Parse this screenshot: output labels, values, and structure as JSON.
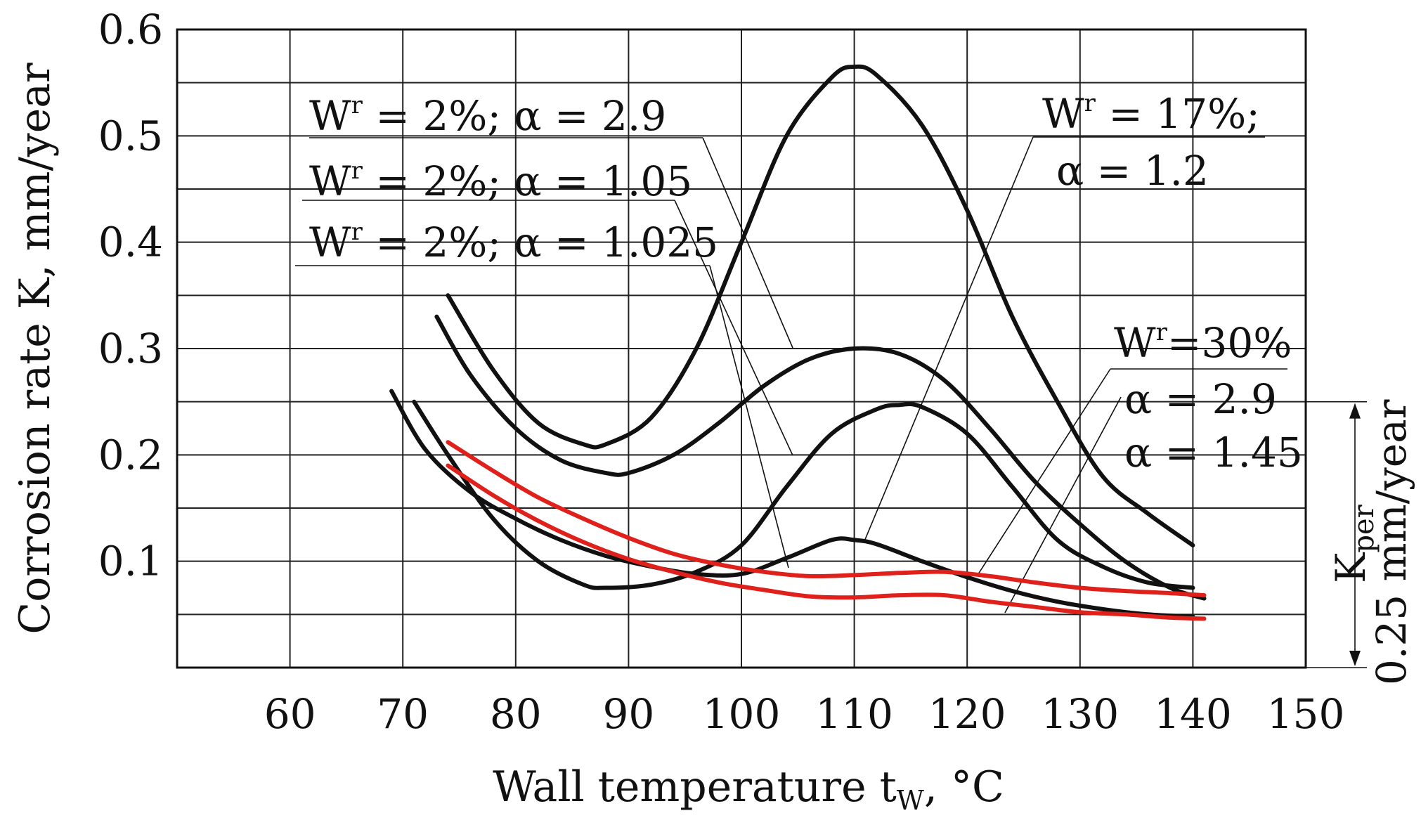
{
  "chart_data": {
    "type": "line",
    "title": "",
    "xlabel": "Wall temperature t",
    "xlabel_sub": "W",
    "xlabel_unit": ", °C",
    "ylabel": "Corrosion rate K, mm/year",
    "xlim": [
      50,
      150
    ],
    "ylim": [
      0,
      0.6
    ],
    "x_ticks": [
      "60",
      "70",
      "80",
      "90",
      "100",
      "110",
      "120",
      "130",
      "140",
      "150"
    ],
    "y_ticks": [
      "0.1",
      "0.2",
      "0.3",
      "0.4",
      "0.5",
      "0.6"
    ],
    "grid": true,
    "colors": {
      "black": "#111111",
      "red": "#e0201b"
    },
    "series": [
      {
        "name": "Wr = 2%; α = 2.9",
        "color": "black",
        "x": [
          74,
          78,
          82,
          86,
          88,
          92,
          96,
          100,
          104,
          108,
          110,
          112,
          116,
          120,
          124,
          128,
          132,
          136,
          140
        ],
        "y": [
          0.35,
          0.28,
          0.23,
          0.21,
          0.21,
          0.235,
          0.3,
          0.4,
          0.5,
          0.555,
          0.565,
          0.557,
          0.51,
          0.43,
          0.33,
          0.25,
          0.18,
          0.145,
          0.115
        ]
      },
      {
        "name": "Wr = 2%; α = 1.05",
        "color": "black",
        "x": [
          73,
          76,
          80,
          84,
          88,
          90,
          94,
          98,
          102,
          106,
          110,
          114,
          118,
          122,
          126,
          130,
          134,
          138,
          141
        ],
        "y": [
          0.33,
          0.275,
          0.225,
          0.195,
          0.183,
          0.183,
          0.2,
          0.23,
          0.265,
          0.29,
          0.3,
          0.295,
          0.27,
          0.225,
          0.175,
          0.135,
          0.1,
          0.075,
          0.065
        ]
      },
      {
        "name": "Wr = 2%; α = 1.025",
        "color": "black",
        "x": [
          71,
          74,
          78,
          82,
          86,
          88,
          92,
          96,
          100,
          104,
          108,
          112,
          114,
          116,
          120,
          124,
          128,
          132,
          136,
          140
        ],
        "y": [
          0.25,
          0.2,
          0.14,
          0.1,
          0.078,
          0.075,
          0.078,
          0.09,
          0.115,
          0.17,
          0.22,
          0.243,
          0.247,
          0.245,
          0.22,
          0.17,
          0.12,
          0.095,
          0.08,
          0.075
        ]
      },
      {
        "name": "Wr = 17%; α = 1.2",
        "color": "black",
        "x": [
          69,
          72,
          76,
          80,
          84,
          88,
          92,
          96,
          100,
          104,
          108,
          110,
          112,
          116,
          120,
          124,
          128,
          132,
          136,
          140
        ],
        "y": [
          0.26,
          0.205,
          0.165,
          0.14,
          0.12,
          0.105,
          0.095,
          0.088,
          0.088,
          0.103,
          0.12,
          0.12,
          0.116,
          0.1,
          0.085,
          0.072,
          0.062,
          0.055,
          0.05,
          0.048
        ]
      },
      {
        "name": "Wr=30%; α = 2.9",
        "color": "red",
        "x": [
          74,
          78,
          82,
          86,
          90,
          94,
          98,
          102,
          106,
          110,
          114,
          118,
          122,
          126,
          130,
          134,
          138,
          141
        ],
        "y": [
          0.212,
          0.185,
          0.16,
          0.14,
          0.122,
          0.107,
          0.097,
          0.09,
          0.086,
          0.087,
          0.089,
          0.09,
          0.086,
          0.08,
          0.075,
          0.072,
          0.07,
          0.068
        ]
      },
      {
        "name": "Wr=30%; α = 1.45",
        "color": "red",
        "x": [
          74,
          78,
          82,
          86,
          90,
          94,
          98,
          102,
          106,
          110,
          114,
          118,
          122,
          126,
          130,
          134,
          138,
          141
        ],
        "y": [
          0.19,
          0.162,
          0.138,
          0.118,
          0.102,
          0.09,
          0.08,
          0.073,
          0.067,
          0.066,
          0.068,
          0.068,
          0.062,
          0.057,
          0.052,
          0.05,
          0.047,
          0.046
        ]
      }
    ],
    "annotations": [
      {
        "base": "W",
        "sup": "r",
        "text": " = 2%; α = 2.9"
      },
      {
        "base": "W",
        "sup": "r",
        "text": " = 2%; α = 1.05"
      },
      {
        "base": "W",
        "sup": "r",
        "text": " = 2%; α = 1.025"
      },
      {
        "base": "W",
        "sup": "r",
        "text": " = 17%;"
      },
      {
        "base": "",
        "sup": "",
        "text": "α = 1.2"
      },
      {
        "base": "W",
        "sup": "r",
        "text": "=30%"
      },
      {
        "base": "",
        "sup": "",
        "text": "α = 2.9"
      },
      {
        "base": "",
        "sup": "",
        "text": "α = 1.45"
      }
    ],
    "kper": {
      "label": "K",
      "label_sub": "per",
      "value_text": "0.25 mm/year",
      "value": 0.25
    }
  }
}
